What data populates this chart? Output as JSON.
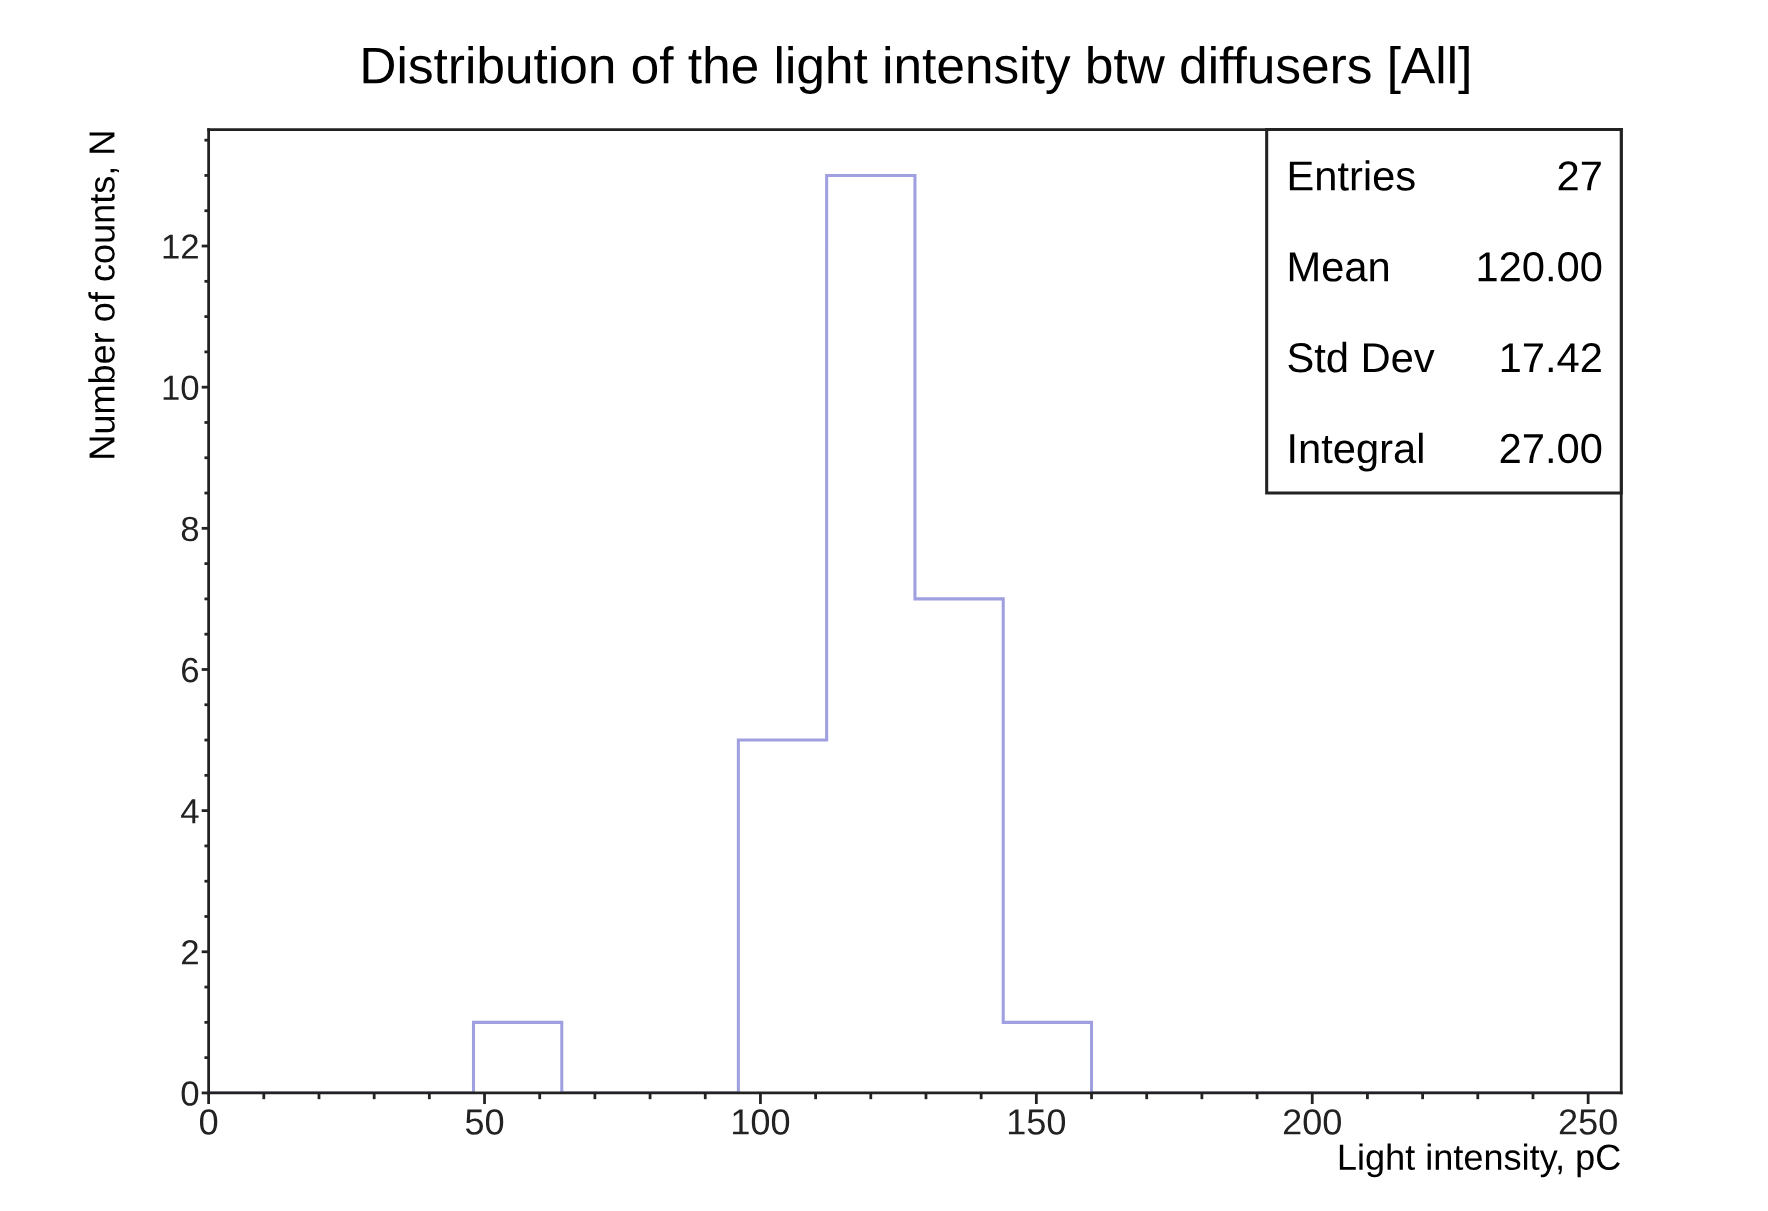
{
  "chart_data": {
    "type": "histogram",
    "title": "Distribution of the light intensity btw diffusers [All]",
    "xlabel": "Light intensity, pC",
    "ylabel": "Number of counts, N",
    "bins": [
      0,
      16,
      32,
      48,
      64,
      80,
      96,
      112,
      128,
      144,
      160,
      176,
      192,
      208,
      224,
      240,
      256
    ],
    "values": [
      0,
      0,
      0,
      1,
      0,
      0,
      5,
      13,
      7,
      1,
      0,
      0,
      0,
      0,
      0,
      0
    ],
    "color": "#a0a0e0",
    "xlim": [
      0,
      256
    ],
    "ylim": [
      0,
      13.65
    ],
    "xticks": [
      0,
      50,
      100,
      150,
      200,
      250
    ],
    "yticks": [
      0,
      2,
      4,
      6,
      8,
      10,
      12
    ],
    "annotations": [
      "Entries",
      "27",
      "Mean",
      "120.00",
      "Std Dev",
      "17.42",
      "Integral",
      "27.00"
    ]
  }
}
